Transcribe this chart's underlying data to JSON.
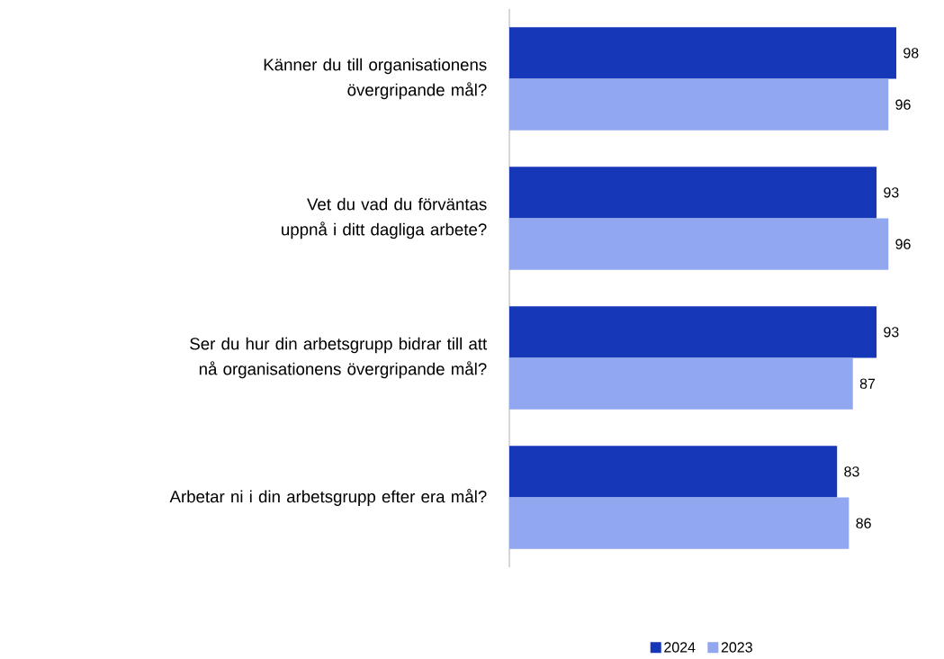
{
  "chart_data": {
    "type": "bar",
    "orientation": "horizontal",
    "categories": [
      "Känner du till organisationens övergripande mål?",
      "Vet du vad du förväntas uppnå i ditt dagliga arbete?",
      "Ser du hur din arbetsgrupp bidrar till att nå organisationens övergripande mål?",
      "Arbetar ni i din arbetsgrupp efter era mål?"
    ],
    "series": [
      {
        "name": "2024",
        "color": "#1537b8",
        "values": [
          98,
          93,
          93,
          83
        ]
      },
      {
        "name": "2023",
        "color": "#91a7ef",
        "values": [
          96,
          96,
          87,
          86
        ]
      }
    ],
    "data_labels": true,
    "legend": "bottom"
  }
}
